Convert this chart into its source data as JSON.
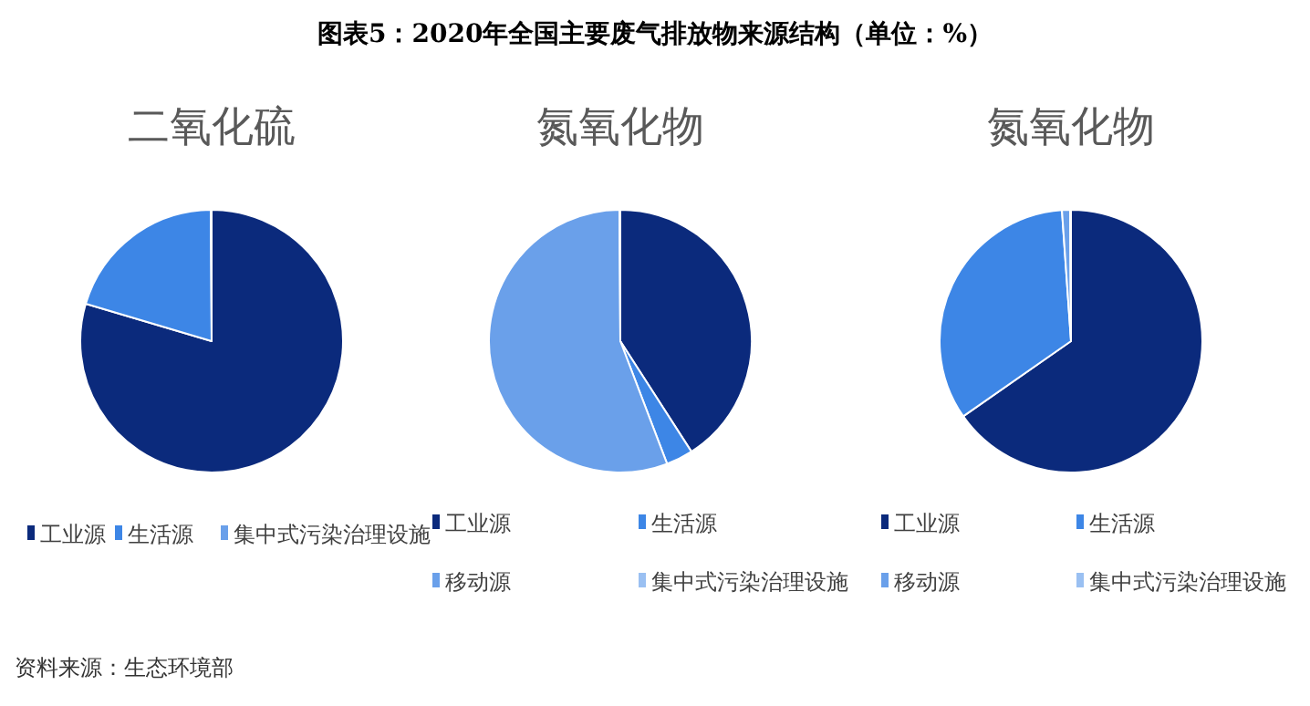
{
  "chart_data": [
    {
      "type": "pie",
      "title": "二氧化硫",
      "categories": [
        "工业源",
        "生活源",
        "集中式污染治理设施"
      ],
      "values": [
        79.6,
        20.3,
        0.1
      ],
      "colors": [
        "#0b2a7c",
        "#3d86e6",
        "#6aa0ea"
      ],
      "legend": "bottom",
      "annotations": [
        "图表5：2020年全国主要废气排放物来源结构（单位：%）",
        "资料来源：生态环境部"
      ]
    },
    {
      "type": "pie",
      "title": "氮氧化物",
      "categories": [
        "工业源",
        "生活源",
        "移动源",
        "集中式污染治理设施"
      ],
      "values": [
        40.9,
        3.3,
        55.7,
        0.1
      ],
      "colors": [
        "#0b2a7c",
        "#3d86e6",
        "#6aa0ea",
        "#9ac0f2"
      ],
      "legend": "bottom"
    },
    {
      "type": "pie",
      "title": "氮氧化物",
      "categories": [
        "工业源",
        "生活源",
        "移动源",
        "集中式污染治理设施"
      ],
      "values": [
        65.3,
        33.6,
        1.0,
        0.1
      ],
      "colors": [
        "#0b2a7c",
        "#3d86e6",
        "#6aa0ea",
        "#9ac0f2"
      ],
      "legend": "bottom"
    }
  ]
}
